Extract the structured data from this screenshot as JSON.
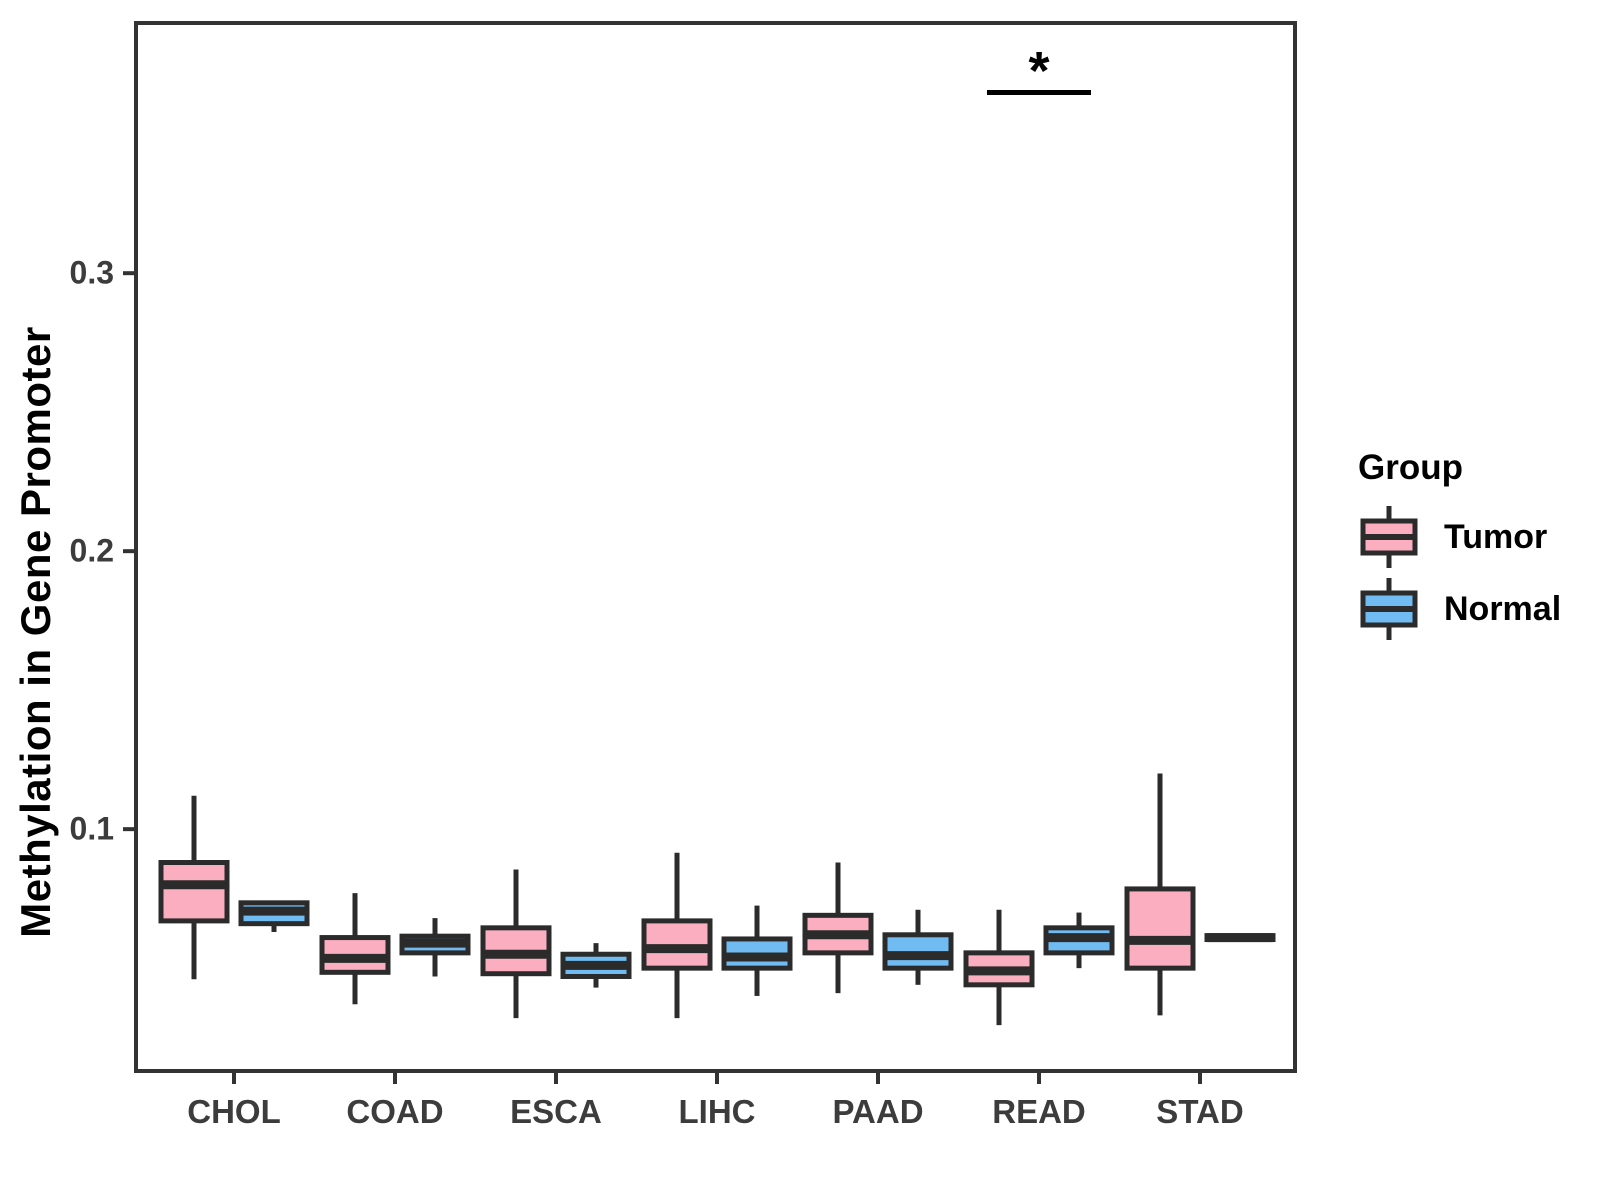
{
  "figure": {
    "background": "#ffffff"
  },
  "legend": {
    "title": "Group",
    "items": [
      {
        "label": "Tumor",
        "color": "#FAAEC0"
      },
      {
        "label": "Normal",
        "color": "#70BCF2"
      }
    ]
  },
  "chart_data": {
    "type": "boxplot",
    "title": "",
    "xlabel": "",
    "ylabel": "Methylation in Gene Promoter",
    "ylim": [
      0.013,
      0.39
    ],
    "yticks": [
      {
        "value": 0.1,
        "label": "0.1"
      },
      {
        "value": 0.2,
        "label": "0.2"
      },
      {
        "value": 0.3,
        "label": "0.3"
      }
    ],
    "grid": false,
    "legend_position": "right",
    "categories": [
      "CHOL",
      "COAD",
      "ESCA",
      "LIHC",
      "PAAD",
      "READ",
      "STAD"
    ],
    "groups": [
      "Tumor",
      "Normal"
    ],
    "colors": {
      "Tumor": "#FAAEC0",
      "Normal": "#70BCF2",
      "stroke": "#2b2b2b"
    },
    "series": [
      {
        "name": "Tumor",
        "boxes": [
          {
            "category": "CHOL",
            "min": 0.046,
            "q1": 0.067,
            "median": 0.08,
            "q3": 0.088,
            "max": 0.112
          },
          {
            "category": "COAD",
            "min": 0.037,
            "q1": 0.0485,
            "median": 0.0535,
            "q3": 0.061,
            "max": 0.077
          },
          {
            "category": "ESCA",
            "min": 0.032,
            "q1": 0.048,
            "median": 0.055,
            "q3": 0.0645,
            "max": 0.0855
          },
          {
            "category": "LIHC",
            "min": 0.032,
            "q1": 0.05,
            "median": 0.057,
            "q3": 0.067,
            "max": 0.0915
          },
          {
            "category": "PAAD",
            "min": 0.041,
            "q1": 0.0555,
            "median": 0.062,
            "q3": 0.069,
            "max": 0.088
          },
          {
            "category": "READ",
            "min": 0.0295,
            "q1": 0.044,
            "median": 0.049,
            "q3": 0.0555,
            "max": 0.071
          },
          {
            "category": "STAD",
            "min": 0.033,
            "q1": 0.05,
            "median": 0.06,
            "q3": 0.0785,
            "max": 0.12
          }
        ]
      },
      {
        "name": "Normal",
        "boxes": [
          {
            "category": "CHOL",
            "min": 0.063,
            "q1": 0.066,
            "median": 0.0705,
            "q3": 0.0735,
            "max": 0.0735
          },
          {
            "category": "COAD",
            "min": 0.047,
            "q1": 0.0555,
            "median": 0.059,
            "q3": 0.0615,
            "max": 0.068
          },
          {
            "category": "ESCA",
            "min": 0.043,
            "q1": 0.047,
            "median": 0.051,
            "q3": 0.055,
            "max": 0.059
          },
          {
            "category": "LIHC",
            "min": 0.04,
            "q1": 0.05,
            "median": 0.054,
            "q3": 0.0605,
            "max": 0.0725
          },
          {
            "category": "PAAD",
            "min": 0.044,
            "q1": 0.05,
            "median": 0.0545,
            "q3": 0.062,
            "max": 0.071
          },
          {
            "category": "READ",
            "min": 0.05,
            "q1": 0.0555,
            "median": 0.061,
            "q3": 0.0645,
            "max": 0.07
          },
          {
            "category": "STAD",
            "min": 0.0597,
            "q1": 0.0603,
            "median": 0.061,
            "q3": 0.0617,
            "max": 0.0623
          }
        ]
      }
    ],
    "annotations": [
      {
        "type": "significance-bracket",
        "label": "*",
        "category": "READ",
        "between": [
          "Tumor",
          "Normal"
        ],
        "line_y_value": 0.365,
        "label_y_value": 0.374
      }
    ]
  }
}
